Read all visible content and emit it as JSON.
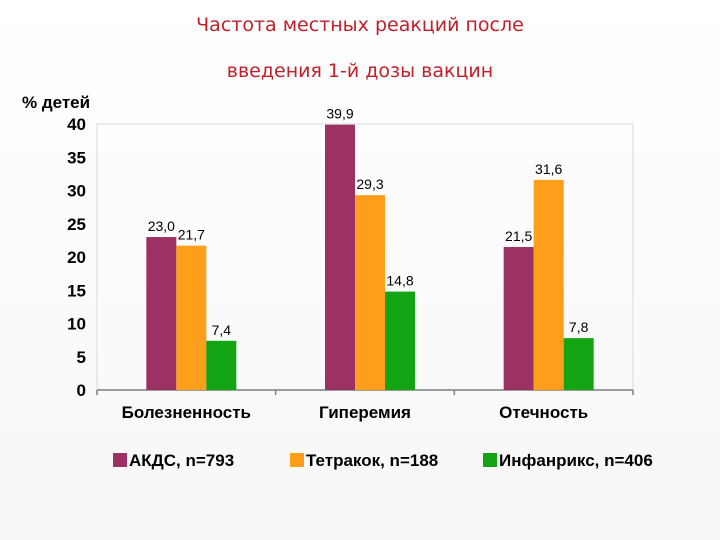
{
  "title_line1": "Частота местных реакций после",
  "title_line2": "введения 1-й дозы вакцин",
  "chart_data": {
    "type": "bar",
    "ylabel": "% детей",
    "ylim": [
      0,
      40
    ],
    "yticks": [
      0,
      5,
      10,
      15,
      20,
      25,
      30,
      35,
      40
    ],
    "grid": false,
    "legend_position": "bottom",
    "categories": [
      "Болезненность",
      "Гиперемия",
      "Отечность"
    ],
    "series": [
      {
        "name": "АКДС, n=793",
        "color": "#9b3263",
        "values": [
          23.0,
          39.9,
          21.5
        ],
        "labels": [
          "23,0",
          "39,9",
          "21,5"
        ]
      },
      {
        "name": "Тетракок, n=188",
        "color": "#ff9e1a",
        "values": [
          21.7,
          29.3,
          31.6
        ],
        "labels": [
          "21,7",
          "29,3",
          "31,6"
        ]
      },
      {
        "name": "Инфанрикс, n=406",
        "color": "#12a412",
        "values": [
          7.4,
          14.8,
          7.8
        ],
        "labels": [
          "7,4",
          "14,8",
          "7,8"
        ]
      }
    ]
  }
}
